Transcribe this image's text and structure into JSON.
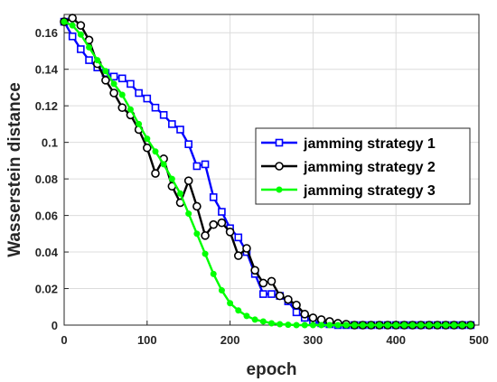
{
  "chart_data": {
    "type": "line",
    "xlabel": "epoch",
    "ylabel": "Wasserstein distance",
    "xlim": [
      0,
      500
    ],
    "ylim": [
      0,
      0.17
    ],
    "xticks": [
      0,
      100,
      200,
      300,
      400,
      500
    ],
    "yticks": [
      0,
      0.02,
      0.04,
      0.06,
      0.08,
      0.1,
      0.12,
      0.14,
      0.16
    ],
    "grid": true,
    "legend_position": "center-right",
    "series": [
      {
        "name": "jamming strategy 1",
        "color": "#0000ff",
        "marker": "square",
        "x": [
          0,
          10,
          20,
          30,
          40,
          50,
          60,
          70,
          80,
          90,
          100,
          110,
          120,
          130,
          140,
          150,
          160,
          170,
          180,
          190,
          200,
          210,
          220,
          230,
          240,
          250,
          260,
          270,
          280,
          290,
          300,
          310,
          320,
          330,
          340,
          350,
          360,
          370,
          380,
          390,
          400,
          410,
          420,
          430,
          440,
          450,
          460,
          470,
          480,
          490
        ],
        "y": [
          0.166,
          0.158,
          0.151,
          0.145,
          0.141,
          0.138,
          0.136,
          0.135,
          0.132,
          0.127,
          0.124,
          0.119,
          0.115,
          0.11,
          0.107,
          0.099,
          0.087,
          0.088,
          0.07,
          0.062,
          0.053,
          0.048,
          0.04,
          0.028,
          0.017,
          0.017,
          0.016,
          0.013,
          0.007,
          0.004,
          0.002,
          0.001,
          0.0005,
          0,
          0,
          0,
          0,
          0,
          0,
          0,
          0,
          0,
          0,
          0,
          0,
          0,
          0,
          0,
          0,
          0
        ]
      },
      {
        "name": "jamming strategy 2",
        "color": "#000000",
        "marker": "circle",
        "x": [
          0,
          10,
          20,
          30,
          40,
          50,
          60,
          70,
          80,
          90,
          100,
          110,
          120,
          130,
          140,
          150,
          160,
          170,
          180,
          190,
          200,
          210,
          220,
          230,
          240,
          250,
          260,
          270,
          280,
          290,
          300,
          310,
          320,
          330,
          340,
          350,
          360,
          370,
          380,
          390,
          400,
          410,
          420,
          430,
          440,
          450,
          460,
          470,
          480,
          490
        ],
        "y": [
          0.166,
          0.168,
          0.164,
          0.156,
          0.143,
          0.134,
          0.127,
          0.119,
          0.115,
          0.107,
          0.097,
          0.083,
          0.091,
          0.076,
          0.067,
          0.079,
          0.065,
          0.049,
          0.055,
          0.056,
          0.051,
          0.038,
          0.042,
          0.03,
          0.023,
          0.024,
          0.016,
          0.014,
          0.011,
          0.006,
          0.004,
          0.003,
          0.002,
          0.001,
          0.0005,
          0,
          0,
          0,
          0,
          0,
          0,
          0,
          0,
          0,
          0,
          0,
          0,
          0,
          0,
          0
        ]
      },
      {
        "name": "jamming strategy 3",
        "color": "#00ff00",
        "marker": "dot",
        "x": [
          0,
          10,
          20,
          30,
          40,
          50,
          60,
          70,
          80,
          90,
          100,
          110,
          120,
          130,
          140,
          150,
          160,
          170,
          180,
          190,
          200,
          210,
          220,
          230,
          240,
          250,
          260,
          270,
          280,
          290,
          300,
          310,
          320,
          330,
          340,
          350,
          360,
          370,
          380,
          390,
          400,
          410,
          420,
          430,
          440,
          450,
          460,
          470,
          480,
          490
        ],
        "y": [
          0.166,
          0.164,
          0.159,
          0.152,
          0.145,
          0.139,
          0.132,
          0.126,
          0.118,
          0.11,
          0.102,
          0.095,
          0.088,
          0.08,
          0.072,
          0.061,
          0.05,
          0.039,
          0.028,
          0.019,
          0.012,
          0.008,
          0.005,
          0.003,
          0.002,
          0.001,
          0.0005,
          0.0002,
          0,
          0,
          0,
          0,
          0,
          0,
          0,
          0,
          0,
          0,
          0,
          0,
          0,
          0,
          0,
          0,
          0,
          0,
          0,
          0,
          0,
          0
        ]
      }
    ]
  }
}
